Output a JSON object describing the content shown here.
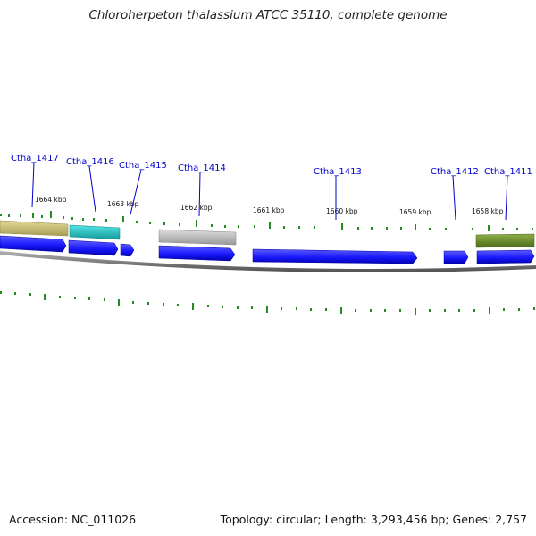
{
  "title": "Chloroherpeton thalassium ATCC 35110, complete genome",
  "footer": {
    "accession": "Accession: NC_011026",
    "summary": "Topology: circular; Length: 3,293,456 bp; Genes: 2,757"
  },
  "colors": {
    "gene_forward": "#1a1aff",
    "tick": "#228B22",
    "backbone": "#777777",
    "label": "#0000cc"
  },
  "scale": {
    "unit": "kbp",
    "labels": [
      "1664 kbp",
      "1663 kbp",
      "1662 kbp",
      "1661 kbp",
      "1660 kbp",
      "1659 kbp",
      "1658 kbp"
    ]
  },
  "locus_tags": [
    "Ctha_1417",
    "Ctha_1416",
    "Ctha_1415",
    "Ctha_1414",
    "Ctha_1413",
    "Ctha_1412",
    "Ctha_1411"
  ],
  "feature_colors": [
    "#c8bd78",
    "#22cccc",
    "#bbbbbb",
    "#6b8e23"
  ]
}
